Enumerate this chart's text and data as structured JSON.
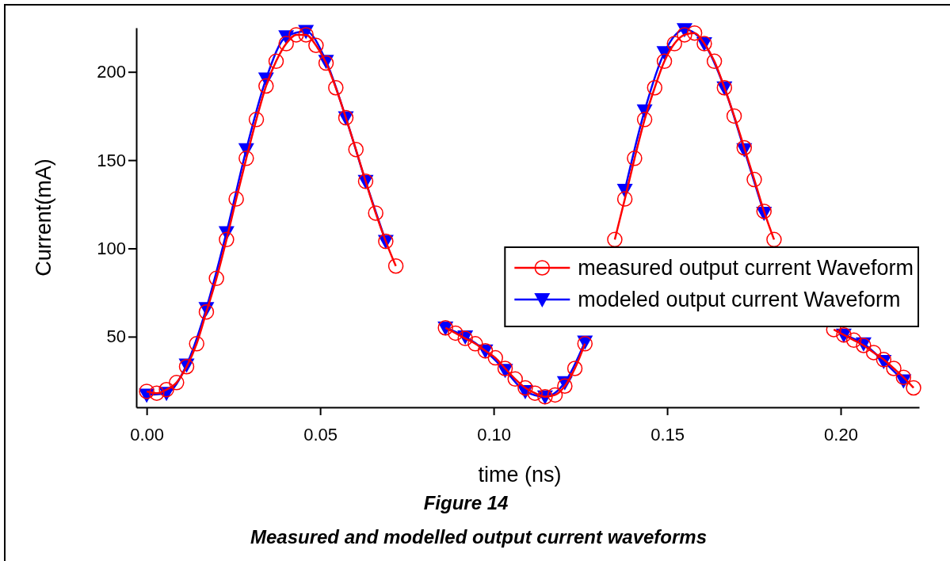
{
  "chart_data": {
    "type": "line",
    "title": "Figure 14",
    "subtitle": "Measured and modelled output current waveforms",
    "xlabel": "time (ns)",
    "ylabel": "Current(mA)",
    "xlim": [
      -0.003,
      0.2226
    ],
    "ylim": [
      10,
      225
    ],
    "xticks": [
      {
        "value": 0,
        "label": "0.00"
      },
      {
        "value": 0.05,
        "label": "0.05"
      },
      {
        "value": 0.1,
        "label": "0.10"
      },
      {
        "value": 0.15,
        "label": "0.15"
      },
      {
        "value": 0.2,
        "label": "0.20"
      }
    ],
    "yticks": [
      50,
      100,
      150,
      200
    ],
    "grid": false,
    "legend": "right",
    "line_style": "solid",
    "series": [
      {
        "name": "measured output current Waveform",
        "color": "#ff0000",
        "marker": "circle",
        "x": [
          0,
          0.0029,
          0.0057,
          0.0086,
          0.0115,
          0.0144,
          0.0172,
          0.0201,
          0.023,
          0.0258,
          0.0287,
          0.0316,
          0.0344,
          0.0373,
          0.0402,
          0.0431,
          0.0459,
          0.0488,
          0.0517,
          0.0545,
          0.0574,
          0.0603,
          0.0631,
          0.066,
          0.0689,
          0.0718,
          0.0746,
          0.0775,
          0.0804,
          0.0832,
          0.0861,
          0.089,
          0.0918,
          0.0947,
          0.0976,
          0.1005,
          0.1033,
          0.1062,
          0.1091,
          0.1119,
          0.1148,
          0.1177,
          0.1205,
          0.1234,
          0.1263,
          0.1292,
          0.132,
          0.1349,
          0.1378,
          0.1406,
          0.1435,
          0.1464,
          0.1492,
          0.1521,
          0.155,
          0.1579,
          0.1607,
          0.1636,
          0.1665,
          0.1693,
          0.1722,
          0.1751,
          0.1779,
          0.1808,
          0.1837,
          0.1866,
          0.1894,
          0.1923,
          0.1952,
          0.198,
          0.2009,
          0.2038,
          0.2066,
          0.2095,
          0.2124,
          0.2153,
          0.2181,
          0.221
        ],
        "values": [
          19,
          18,
          20,
          24,
          33,
          46,
          64,
          83,
          105,
          128,
          151,
          173,
          192,
          206,
          216,
          221,
          221,
          215,
          205,
          191,
          174,
          156,
          138,
          120,
          104,
          90,
          null,
          null,
          null,
          null,
          55,
          52,
          49,
          46,
          42,
          38,
          32,
          26,
          21,
          18,
          16,
          17,
          22,
          32,
          46,
          null,
          null,
          105,
          128,
          151,
          173,
          191,
          206,
          216,
          221,
          222,
          216,
          206,
          191,
          175,
          157,
          139,
          121,
          105,
          null,
          null,
          null,
          null,
          null,
          54,
          51,
          48,
          45,
          41,
          37,
          32,
          27,
          21
        ]
      },
      {
        "name": "modeled output current Waveform",
        "color": "#0000ff",
        "marker": "triangle",
        "x": [
          0,
          0.0057,
          0.0115,
          0.0172,
          0.023,
          0.0287,
          0.0344,
          0.0402,
          0.0459,
          0.0517,
          0.0574,
          0.0631,
          0.0689,
          0.0746,
          0.0804,
          0.0861,
          0.0918,
          0.0976,
          0.1033,
          0.1091,
          0.1148,
          0.1205,
          0.1263,
          0.132,
          0.1378,
          0.1435,
          0.1492,
          0.155,
          0.1607,
          0.1665,
          0.1722,
          0.1779,
          0.1837,
          0.1894,
          0.1952,
          0.2009,
          0.2066,
          0.2124,
          0.2181
        ],
        "values": [
          17,
          18,
          34,
          66,
          109,
          156,
          196,
          220,
          223,
          206,
          174,
          138,
          104,
          null,
          null,
          55,
          50,
          42,
          31,
          19,
          16,
          24,
          47,
          null,
          133,
          178,
          211,
          224,
          216,
          191,
          156,
          120,
          null,
          null,
          null,
          51,
          46,
          36,
          25
        ]
      }
    ]
  }
}
